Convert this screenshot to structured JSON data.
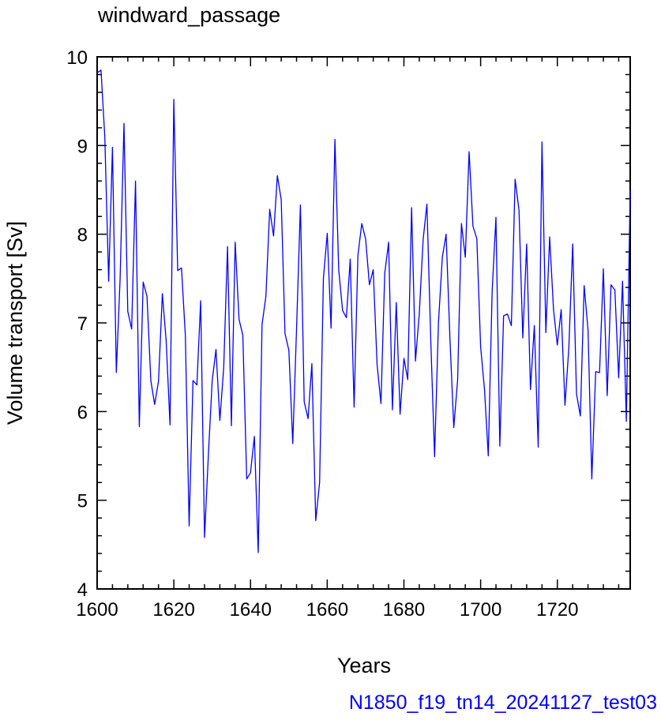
{
  "chart_data": {
    "type": "line",
    "title": "windward_passage",
    "xlabel": "Years",
    "ylabel": "Volume transport [Sv]",
    "footer": "N1850_f19_tn14_20241127_test03",
    "xlim": [
      1600,
      1739
    ],
    "ylim": [
      4,
      10
    ],
    "x_ticks": [
      1600,
      1620,
      1640,
      1660,
      1680,
      1700,
      1720
    ],
    "y_ticks": [
      4,
      5,
      6,
      7,
      8,
      9,
      10
    ],
    "x_tick_labels": [
      "1600",
      "1620",
      "1640",
      "1660",
      "1680",
      "1700",
      "1720"
    ],
    "y_tick_labels": [
      "4",
      "5",
      "6",
      "7",
      "8",
      "9",
      "10"
    ],
    "line_color": "#0000ff",
    "footer_color": "#0000ff",
    "series": [
      {
        "x_start": 1600,
        "x_step": 1,
        "values": [
          9.82,
          9.85,
          9.1,
          7.47,
          8.98,
          6.44,
          7.5,
          9.25,
          7.13,
          6.93,
          8.6,
          5.83,
          7.46,
          7.3,
          6.35,
          6.08,
          6.34,
          7.33,
          6.8,
          5.85,
          9.52,
          7.59,
          7.62,
          6.86,
          4.71,
          6.35,
          6.3,
          7.25,
          4.58,
          5.5,
          6.35,
          6.7,
          5.9,
          6.5,
          7.86,
          5.84,
          7.91,
          7.04,
          6.86,
          5.24,
          5.31,
          5.72,
          4.41,
          6.98,
          7.3,
          8.28,
          7.98,
          8.66,
          8.39,
          6.88,
          6.69,
          5.64,
          6.93,
          8.33,
          6.11,
          5.92,
          6.54,
          4.77,
          5.2,
          7.5,
          8.01,
          6.94,
          9.07,
          7.6,
          7.14,
          7.06,
          7.72,
          6.05,
          7.76,
          8.12,
          7.95,
          7.43,
          7.6,
          6.53,
          6.09,
          7.56,
          7.91,
          6.02,
          7.23,
          5.97,
          6.6,
          6.36,
          8.3,
          6.57,
          7.1,
          7.94,
          8.34,
          6.8,
          5.49,
          7.0,
          7.74,
          8.0,
          6.81,
          5.82,
          6.36,
          8.12,
          7.74,
          8.93,
          8.09,
          7.95,
          6.73,
          6.25,
          5.5,
          7.36,
          8.19,
          5.61,
          7.08,
          7.1,
          6.97,
          8.62,
          8.27,
          6.83,
          7.89,
          6.25,
          6.97,
          5.6,
          9.04,
          6.89,
          7.97,
          7.15,
          6.75,
          7.15,
          6.07,
          6.72,
          7.89,
          6.2,
          5.95,
          7.42,
          6.92,
          5.24,
          6.45,
          6.44,
          7.61,
          6.18,
          7.43,
          7.37,
          6.38,
          7.47,
          5.89,
          8.5
        ]
      }
    ]
  }
}
